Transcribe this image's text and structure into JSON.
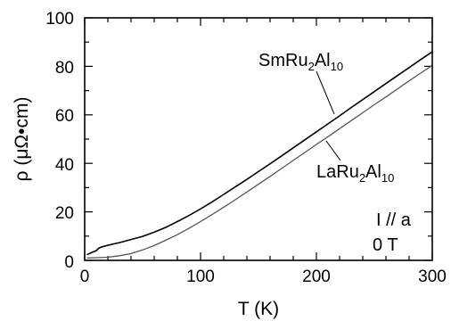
{
  "chart_data": {
    "type": "line",
    "xlabel": "T  (K)",
    "ylabel": "ρ  (μΩ•cm)",
    "xlim": [
      0,
      300
    ],
    "ylim": [
      0,
      100
    ],
    "xticks": [
      0,
      100,
      200,
      300
    ],
    "yticks": [
      0,
      20,
      40,
      60,
      80,
      100
    ],
    "grid": false,
    "series": [
      {
        "name": "SmRu2Al10",
        "color": "#000000",
        "x": [
          2,
          5,
          10,
          12,
          15,
          20,
          30,
          40,
          50,
          60,
          70,
          80,
          90,
          100,
          110,
          120,
          130,
          140,
          150,
          160,
          170,
          180,
          190,
          200,
          210,
          220,
          230,
          240,
          250,
          260,
          270,
          280,
          290,
          300
        ],
        "y": [
          2.3,
          3.0,
          4.0,
          5.0,
          5.6,
          6.2,
          7.3,
          8.6,
          9.9,
          11.6,
          13.6,
          16.0,
          18.5,
          21.2,
          24.1,
          27.2,
          30.3,
          33.4,
          36.6,
          39.8,
          43.1,
          46.4,
          49.7,
          53.0,
          56.3,
          59.6,
          63.0,
          66.3,
          69.6,
          72.9,
          76.2,
          79.5,
          82.8,
          86.0
        ]
      },
      {
        "name": "LaRu2Al10",
        "color": "#555555",
        "x": [
          2,
          10,
          20,
          30,
          40,
          50,
          60,
          70,
          80,
          90,
          100,
          110,
          120,
          130,
          140,
          150,
          160,
          170,
          180,
          190,
          200,
          210,
          220,
          230,
          240,
          250,
          260,
          270,
          280,
          290,
          300
        ],
        "y": [
          1.0,
          1.1,
          1.3,
          1.9,
          2.8,
          4.3,
          6.1,
          8.3,
          10.6,
          13.2,
          16.0,
          18.9,
          21.9,
          25.0,
          28.2,
          31.4,
          34.6,
          37.9,
          41.2,
          44.5,
          47.8,
          51.0,
          54.3,
          57.6,
          60.9,
          64.2,
          67.4,
          70.7,
          74.0,
          77.2,
          80.4
        ]
      }
    ],
    "series_labels": [
      {
        "base": "SmRu",
        "sub1": "2",
        "mid": "Al",
        "sub2": "10"
      },
      {
        "base": "LaRu",
        "sub1": "2",
        "mid": "Al",
        "sub2": "10"
      }
    ],
    "annotations": [
      "I // a",
      "0 T"
    ]
  }
}
